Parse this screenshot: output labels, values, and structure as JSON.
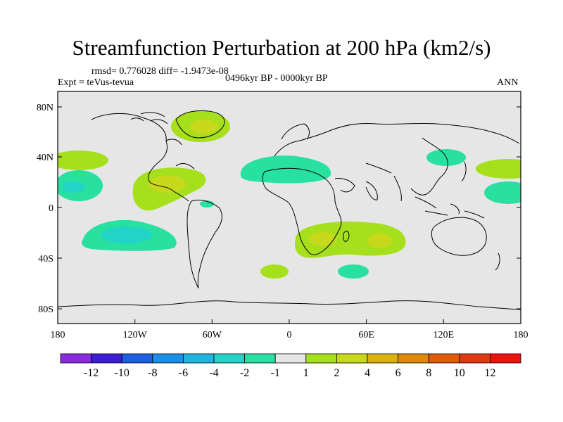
{
  "title": "Streamfunction Perturbation at 200 hPa (km2/s)",
  "stats": "rmsd= 0.776028 diff= -1.9473e-08",
  "experiment": "Expt = teVus-tevua",
  "period": "0496kyr BP - 0000kyr BP",
  "season": "ANN",
  "lat_labels": [
    "80N",
    "40N",
    "0",
    "40S",
    "80S"
  ],
  "lon_labels": [
    "180",
    "120W",
    "60W",
    "0",
    "60E",
    "120E",
    "180"
  ],
  "colorbar": {
    "labels": [
      "-12",
      "-10",
      "-8",
      "-6",
      "-4",
      "-2",
      "-1",
      "1",
      "2",
      "4",
      "6",
      "8",
      "10",
      "12"
    ],
    "colors": [
      "#8a2be2",
      "#3a1fd6",
      "#1d5fe0",
      "#1a8fe6",
      "#1fb6e0",
      "#22d3c8",
      "#28e0a0",
      "#e6e6e6",
      "#a6e01c",
      "#c8d81a",
      "#dcb20e",
      "#e08a0a",
      "#e05a0a",
      "#e03a12",
      "#f01010"
    ]
  },
  "colors": {
    "background": "#e6e6e6",
    "positive_light": "#a6e01c",
    "positive_mid": "#c8d81a",
    "negative_light": "#28e0a0",
    "negative_mid": "#22d3c8"
  }
}
